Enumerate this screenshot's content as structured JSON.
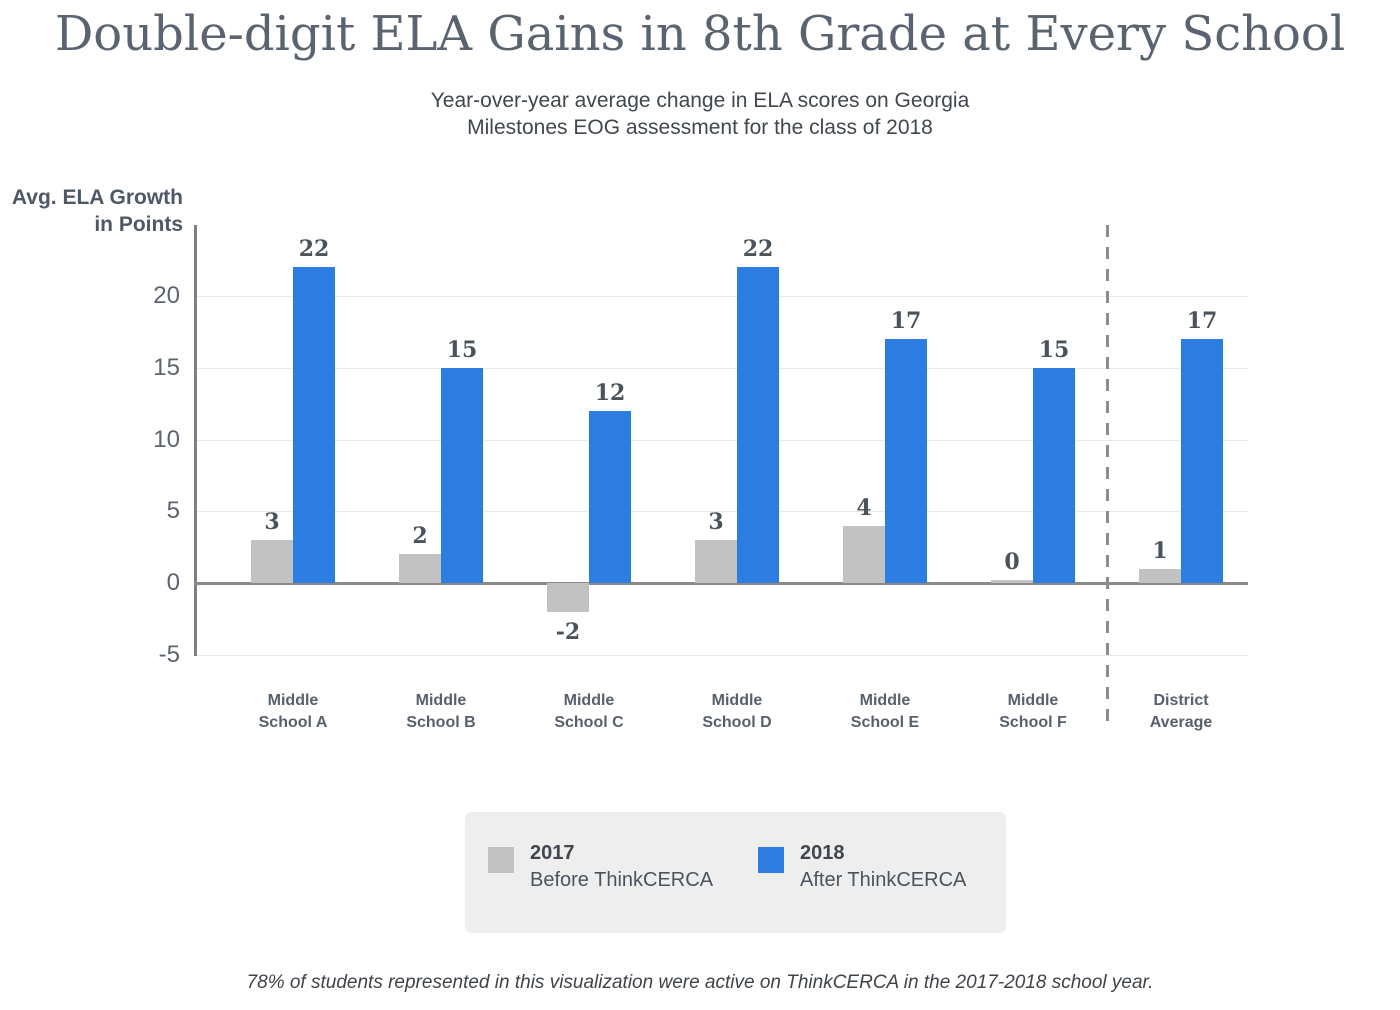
{
  "header": {
    "title": "Double-digit ELA Gains in 8th Grade at Every School",
    "subtitle_lines": [
      "Year-over-year average change in ELA scores on Georgia",
      "Milestones EOG assessment for the class of 2018"
    ]
  },
  "axis": {
    "y_label_lines": [
      "Avg. ELA Growth",
      "in Points"
    ]
  },
  "chart_data": {
    "type": "bar",
    "categories": [
      "Middle School A",
      "Middle School B",
      "Middle School C",
      "Middle School D",
      "Middle School E",
      "Middle School F",
      "District Average"
    ],
    "category_label_lines": [
      [
        "Middle",
        "School A"
      ],
      [
        "Middle",
        "School B"
      ],
      [
        "Middle",
        "School C"
      ],
      [
        "Middle",
        "School D"
      ],
      [
        "Middle",
        "School E"
      ],
      [
        "Middle",
        "School F"
      ],
      [
        "District",
        "Average"
      ]
    ],
    "series": [
      {
        "name": "2017",
        "label": "Before ThinkCERCA",
        "color": "#c2c2c2",
        "values": [
          3,
          2,
          -2,
          3,
          4,
          0,
          1
        ]
      },
      {
        "name": "2018",
        "label": "After ThinkCERCA",
        "color": "#2e7de0",
        "values": [
          22,
          15,
          12,
          22,
          17,
          15,
          17
        ]
      }
    ],
    "yticks": [
      20,
      15,
      10,
      5,
      0,
      -5
    ],
    "ylim": [
      -5,
      25
    ],
    "grid": true,
    "title": "Double-digit ELA Gains in 8th Grade at Every School",
    "ylabel": "Avg. ELA Growth in Points",
    "legend_position": "bottom",
    "separator_after_category": "Middle School F"
  },
  "legend": {
    "items": [
      {
        "swatch_color": "#c2c2c2",
        "year": "2017",
        "label": "Before ThinkCERCA"
      },
      {
        "swatch_color": "#2e7de0",
        "year": "2018",
        "label": "After ThinkCERCA"
      }
    ]
  },
  "footnote": "78% of students represented in this visualization were active on ThinkCERCA in the 2017-2018 school year.",
  "colors": {
    "bar_2017": "#c2c2c2",
    "bar_2018": "#2e7de0",
    "axis_line": "#7f7f7f",
    "zero_line": "#8a8a8a",
    "gridline": "#e8e8e8",
    "separator": "#8c8c8c",
    "legend_bg": "#eeeeee"
  }
}
